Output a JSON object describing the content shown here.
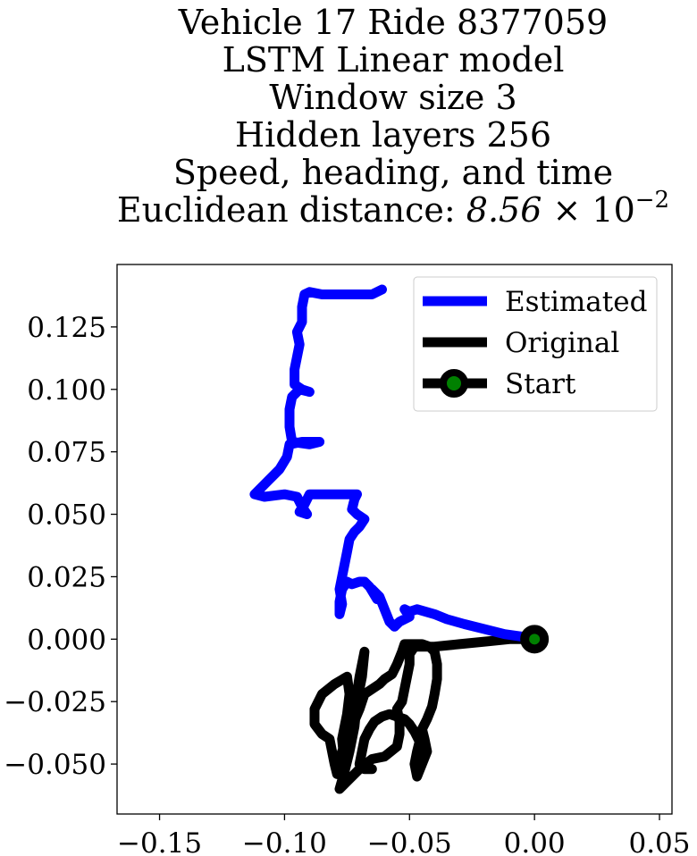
{
  "chart_data": {
    "type": "line",
    "title_lines": [
      "Vehicle 17 Ride 8377059",
      "LSTM Linear model",
      "Window size 3",
      "Hidden layers 256",
      "Speed, heading, and time"
    ],
    "title_metric_label": "Euclidean distance: ",
    "title_metric_mantissa": "8.56",
    "title_metric_times": " × 10",
    "title_metric_exponent": "−2",
    "xlim": [
      -0.167,
      0.055
    ],
    "ylim": [
      -0.07,
      0.15
    ],
    "x_ticks": [
      -0.15,
      -0.1,
      -0.05,
      0.0,
      0.05
    ],
    "x_tick_labels": [
      "−0.15",
      "−0.10",
      "−0.05",
      "0.00",
      "0.05"
    ],
    "y_ticks": [
      -0.05,
      -0.025,
      0.0,
      0.025,
      0.05,
      0.075,
      0.1,
      0.125
    ],
    "y_tick_labels": [
      "−0.050",
      "−0.025",
      "0.000",
      "0.025",
      "0.050",
      "0.075",
      "0.100",
      "0.125"
    ],
    "grid": false,
    "legend_position": "top-right",
    "series": [
      {
        "name": "Estimated",
        "color": "#0000ff",
        "points": [
          [
            0.0,
            0.0
          ],
          [
            -0.005,
            0.001
          ],
          [
            -0.012,
            0.002
          ],
          [
            -0.02,
            0.004
          ],
          [
            -0.028,
            0.006
          ],
          [
            -0.035,
            0.008
          ],
          [
            -0.04,
            0.01
          ],
          [
            -0.047,
            0.012
          ],
          [
            -0.05,
            0.011
          ],
          [
            -0.052,
            0.012
          ],
          [
            -0.05,
            0.009
          ],
          [
            -0.054,
            0.007
          ],
          [
            -0.056,
            0.005
          ],
          [
            -0.058,
            0.007
          ],
          [
            -0.06,
            0.012
          ],
          [
            -0.062,
            0.017
          ],
          [
            -0.065,
            0.02
          ],
          [
            -0.063,
            0.016
          ],
          [
            -0.066,
            0.021
          ],
          [
            -0.068,
            0.023
          ],
          [
            -0.07,
            0.023
          ],
          [
            -0.073,
            0.022
          ],
          [
            -0.075,
            0.023
          ],
          [
            -0.077,
            0.02
          ],
          [
            -0.078,
            0.015
          ],
          [
            -0.078,
            0.01
          ],
          [
            -0.077,
            0.014
          ],
          [
            -0.078,
            0.02
          ],
          [
            -0.077,
            0.025
          ],
          [
            -0.076,
            0.03
          ],
          [
            -0.075,
            0.035
          ],
          [
            -0.074,
            0.04
          ],
          [
            -0.072,
            0.043
          ],
          [
            -0.07,
            0.045
          ],
          [
            -0.068,
            0.048
          ],
          [
            -0.071,
            0.05
          ],
          [
            -0.073,
            0.052
          ],
          [
            -0.072,
            0.056
          ],
          [
            -0.071,
            0.058
          ],
          [
            -0.077,
            0.058
          ],
          [
            -0.085,
            0.058
          ],
          [
            -0.09,
            0.058
          ],
          [
            -0.092,
            0.054
          ],
          [
            -0.094,
            0.051
          ],
          [
            -0.091,
            0.05
          ],
          [
            -0.093,
            0.053
          ],
          [
            -0.095,
            0.057
          ],
          [
            -0.1,
            0.058
          ],
          [
            -0.108,
            0.057
          ],
          [
            -0.112,
            0.058
          ],
          [
            -0.107,
            0.063
          ],
          [
            -0.102,
            0.068
          ],
          [
            -0.099,
            0.073
          ],
          [
            -0.098,
            0.078
          ],
          [
            -0.093,
            0.079
          ],
          [
            -0.086,
            0.079
          ],
          [
            -0.09,
            0.078
          ],
          [
            -0.097,
            0.079
          ],
          [
            -0.098,
            0.085
          ],
          [
            -0.098,
            0.092
          ],
          [
            -0.097,
            0.097
          ],
          [
            -0.094,
            0.1
          ],
          [
            -0.09,
            0.099
          ],
          [
            -0.093,
            0.1
          ],
          [
            -0.096,
            0.102
          ],
          [
            -0.096,
            0.108
          ],
          [
            -0.095,
            0.113
          ],
          [
            -0.094,
            0.118
          ],
          [
            -0.095,
            0.123
          ],
          [
            -0.093,
            0.127
          ],
          [
            -0.093,
            0.133
          ],
          [
            -0.092,
            0.138
          ],
          [
            -0.09,
            0.139
          ],
          [
            -0.085,
            0.138
          ],
          [
            -0.078,
            0.138
          ],
          [
            -0.07,
            0.138
          ],
          [
            -0.065,
            0.138
          ],
          [
            -0.061,
            0.14
          ]
        ]
      },
      {
        "name": "Original",
        "color": "#000000",
        "points": [
          [
            0.0,
            0.0
          ],
          [
            -0.01,
            0.0
          ],
          [
            -0.02,
            -0.001
          ],
          [
            -0.03,
            -0.002
          ],
          [
            -0.04,
            -0.003
          ],
          [
            -0.048,
            -0.003
          ],
          [
            -0.05,
            -0.006
          ],
          [
            -0.05,
            -0.01
          ],
          [
            -0.051,
            -0.015
          ],
          [
            -0.052,
            -0.02
          ],
          [
            -0.053,
            -0.025
          ],
          [
            -0.055,
            -0.028
          ],
          [
            -0.054,
            -0.033
          ],
          [
            -0.054,
            -0.038
          ],
          [
            -0.055,
            -0.043
          ],
          [
            -0.06,
            -0.047
          ],
          [
            -0.065,
            -0.048
          ],
          [
            -0.07,
            -0.052
          ],
          [
            -0.074,
            -0.056
          ],
          [
            -0.078,
            -0.06
          ],
          [
            -0.076,
            -0.053
          ],
          [
            -0.074,
            -0.045
          ],
          [
            -0.072,
            -0.035
          ],
          [
            -0.071,
            -0.025
          ],
          [
            -0.069,
            -0.015
          ],
          [
            -0.068,
            -0.005
          ],
          [
            -0.07,
            -0.015
          ],
          [
            -0.072,
            -0.028
          ],
          [
            -0.074,
            -0.04
          ],
          [
            -0.076,
            -0.05
          ],
          [
            -0.077,
            -0.04
          ],
          [
            -0.075,
            -0.03
          ],
          [
            -0.074,
            -0.022
          ],
          [
            -0.075,
            -0.015
          ],
          [
            -0.08,
            -0.018
          ],
          [
            -0.085,
            -0.022
          ],
          [
            -0.088,
            -0.028
          ],
          [
            -0.088,
            -0.034
          ],
          [
            -0.085,
            -0.038
          ],
          [
            -0.082,
            -0.04
          ],
          [
            -0.08,
            -0.05
          ],
          [
            -0.079,
            -0.054
          ],
          [
            -0.078,
            -0.048
          ],
          [
            -0.076,
            -0.042
          ],
          [
            -0.073,
            -0.035
          ],
          [
            -0.07,
            -0.028
          ],
          [
            -0.068,
            -0.022
          ],
          [
            -0.065,
            -0.02
          ],
          [
            -0.062,
            -0.018
          ],
          [
            -0.06,
            -0.016
          ],
          [
            -0.057,
            -0.014
          ],
          [
            -0.055,
            -0.01
          ],
          [
            -0.053,
            -0.005
          ],
          [
            -0.052,
            -0.002
          ],
          [
            -0.049,
            -0.002
          ],
          [
            -0.045,
            -0.002
          ],
          [
            -0.042,
            -0.003
          ],
          [
            -0.04,
            -0.005
          ],
          [
            -0.039,
            -0.01
          ],
          [
            -0.039,
            -0.016
          ],
          [
            -0.04,
            -0.022
          ],
          [
            -0.041,
            -0.027
          ],
          [
            -0.043,
            -0.032
          ],
          [
            -0.045,
            -0.036
          ],
          [
            -0.044,
            -0.04
          ],
          [
            -0.043,
            -0.045
          ],
          [
            -0.045,
            -0.05
          ],
          [
            -0.047,
            -0.055
          ],
          [
            -0.048,
            -0.05
          ],
          [
            -0.047,
            -0.045
          ],
          [
            -0.046,
            -0.041
          ],
          [
            -0.048,
            -0.037
          ],
          [
            -0.05,
            -0.034
          ],
          [
            -0.052,
            -0.032
          ],
          [
            -0.055,
            -0.031
          ],
          [
            -0.058,
            -0.03
          ],
          [
            -0.061,
            -0.031
          ],
          [
            -0.064,
            -0.033
          ],
          [
            -0.066,
            -0.036
          ],
          [
            -0.068,
            -0.04
          ],
          [
            -0.069,
            -0.045
          ],
          [
            -0.07,
            -0.05
          ],
          [
            -0.068,
            -0.052
          ],
          [
            -0.065,
            -0.052
          ]
        ]
      }
    ],
    "start_point": {
      "name": "Start",
      "x": 0.0,
      "y": 0.0,
      "marker_edge_color": "#000000",
      "marker_face_color": "#008000"
    }
  }
}
